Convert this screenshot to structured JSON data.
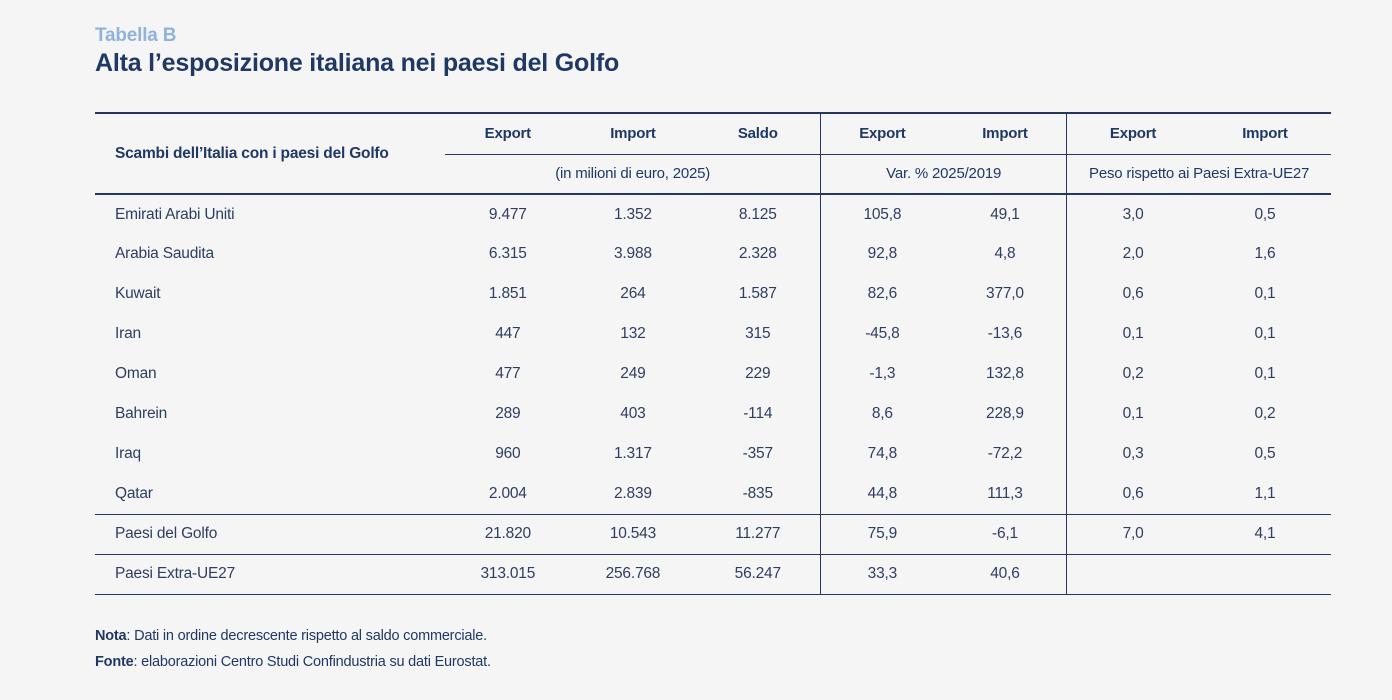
{
  "page": {
    "table_label": "Tabella B",
    "title": "Alta l’esposizione italiana nei paesi del Golfo"
  },
  "colors": {
    "accent_light_blue": "#8fb3d9",
    "navy": "#1f3864",
    "background": "#f5f5f6"
  },
  "table": {
    "row_header_title": "Scambi dell’Italia con i paesi del Golfo",
    "groups": [
      {
        "subtitle": "(in milioni di euro, 2025)",
        "columns": [
          "Export",
          "Import",
          "Saldo"
        ]
      },
      {
        "subtitle": "Var. % 2025/2019",
        "columns": [
          "Export",
          "Import"
        ]
      },
      {
        "subtitle": "Peso rispetto ai Paesi Extra-UE27",
        "columns": [
          "Export",
          "Import"
        ]
      }
    ],
    "rows": [
      {
        "label": "Emirati Arabi Uniti",
        "separator_above": false,
        "values": [
          "9.477",
          "1.352",
          "8.125",
          "105,8",
          "49,1",
          "3,0",
          "0,5"
        ]
      },
      {
        "label": "Arabia Saudita",
        "separator_above": false,
        "values": [
          "6.315",
          "3.988",
          "2.328",
          "92,8",
          "4,8",
          "2,0",
          "1,6"
        ]
      },
      {
        "label": "Kuwait",
        "separator_above": false,
        "values": [
          "1.851",
          "264",
          "1.587",
          "82,6",
          "377,0",
          "0,6",
          "0,1"
        ]
      },
      {
        "label": "Iran",
        "separator_above": false,
        "values": [
          "447",
          "132",
          "315",
          "-45,8",
          "-13,6",
          "0,1",
          "0,1"
        ]
      },
      {
        "label": "Oman",
        "separator_above": false,
        "values": [
          "477",
          "249",
          "229",
          "-1,3",
          "132,8",
          "0,2",
          "0,1"
        ]
      },
      {
        "label": "Bahrein",
        "separator_above": false,
        "values": [
          "289",
          "403",
          "-114",
          "8,6",
          "228,9",
          "0,1",
          "0,2"
        ]
      },
      {
        "label": "Iraq",
        "separator_above": false,
        "values": [
          "960",
          "1.317",
          "-357",
          "74,8",
          "-72,2",
          "0,3",
          "0,5"
        ]
      },
      {
        "label": "Qatar",
        "separator_above": false,
        "values": [
          "2.004",
          "2.839",
          "-835",
          "44,8",
          "111,3",
          "0,6",
          "1,1"
        ]
      },
      {
        "label": "Paesi del Golfo",
        "separator_above": true,
        "values": [
          "21.820",
          "10.543",
          "11.277",
          "75,9",
          "-6,1",
          "7,0",
          "4,1"
        ]
      },
      {
        "label": "Paesi Extra-UE27",
        "separator_above": true,
        "values": [
          "313.015",
          "256.768",
          "56.247",
          "33,3",
          "40,6",
          "",
          ""
        ]
      }
    ]
  },
  "notes": {
    "nota_label": "Nota",
    "nota_text": ": Dati in ordine decrescente rispetto al saldo commerciale.",
    "fonte_label": "Fonte",
    "fonte_text": ": elaborazioni Centro Studi Confindustria su dati Eurostat."
  }
}
